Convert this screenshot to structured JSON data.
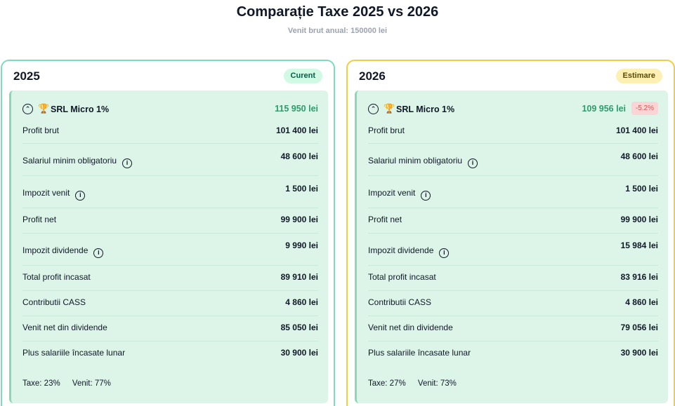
{
  "header": {
    "title": "Comparație Taxe 2025 vs 2026",
    "subtitle": "Venit brut anual: 150000 lei"
  },
  "colors": {
    "card2025_border": "#7ddcbd",
    "card2026_border": "#f5cd3a",
    "inner_bg": "#dcf5e8",
    "total_green": "#2e9c6a",
    "delta_red": "#d9534f"
  },
  "cards": [
    {
      "year": "2025",
      "badge": "Curent",
      "plan_icon": "trophy-icon",
      "plan_name": "SRL Micro 1%",
      "plan_total": "115 950 lei",
      "rows": [
        {
          "label": "Profit brut",
          "value": "101 400 lei",
          "info": false
        },
        {
          "label": "Salariul minim obligatoriu",
          "value": "48 600 lei",
          "info": true
        },
        {
          "label": "Impozit venit",
          "value": "1 500 lei",
          "info": true
        },
        {
          "label": "Profit net",
          "value": "99 900 lei",
          "info": false
        },
        {
          "label": "Impozit dividende",
          "value": "9 990 lei",
          "info": true
        },
        {
          "label": "Total profit incasat",
          "value": "89 910 lei",
          "info": false
        },
        {
          "label": "Contributii CASS",
          "value": "4 860 lei",
          "info": false
        },
        {
          "label": "Venit net din dividende",
          "value": "85 050 lei",
          "info": false
        },
        {
          "label": "Plus salariile încasate lunar",
          "value": "30 900 lei",
          "info": false
        }
      ],
      "taxe": "Taxe: 23%",
      "venit": "Venit: 77%"
    },
    {
      "year": "2026",
      "badge": "Estimare",
      "plan_icon": "trophy-icon",
      "plan_name": "SRL Micro 1%",
      "plan_total": "109 956 lei",
      "delta": "-5.2%",
      "rows": [
        {
          "label": "Profit brut",
          "value": "101 400 lei",
          "info": false
        },
        {
          "label": "Salariul minim obligatoriu",
          "value": "48 600 lei",
          "info": true
        },
        {
          "label": "Impozit venit",
          "value": "1 500 lei",
          "info": true
        },
        {
          "label": "Profit net",
          "value": "99 900 lei",
          "info": false
        },
        {
          "label": "Impozit dividende",
          "value": "15 984 lei",
          "info": true
        },
        {
          "label": "Total profit incasat",
          "value": "83 916 lei",
          "info": false
        },
        {
          "label": "Contributii CASS",
          "value": "4 860 lei",
          "info": false
        },
        {
          "label": "Venit net din dividende",
          "value": "79 056 lei",
          "info": false
        },
        {
          "label": "Plus salariile încasate lunar",
          "value": "30 900 lei",
          "info": false
        }
      ],
      "taxe": "Taxe: 27%",
      "venit": "Venit: 73%"
    }
  ]
}
